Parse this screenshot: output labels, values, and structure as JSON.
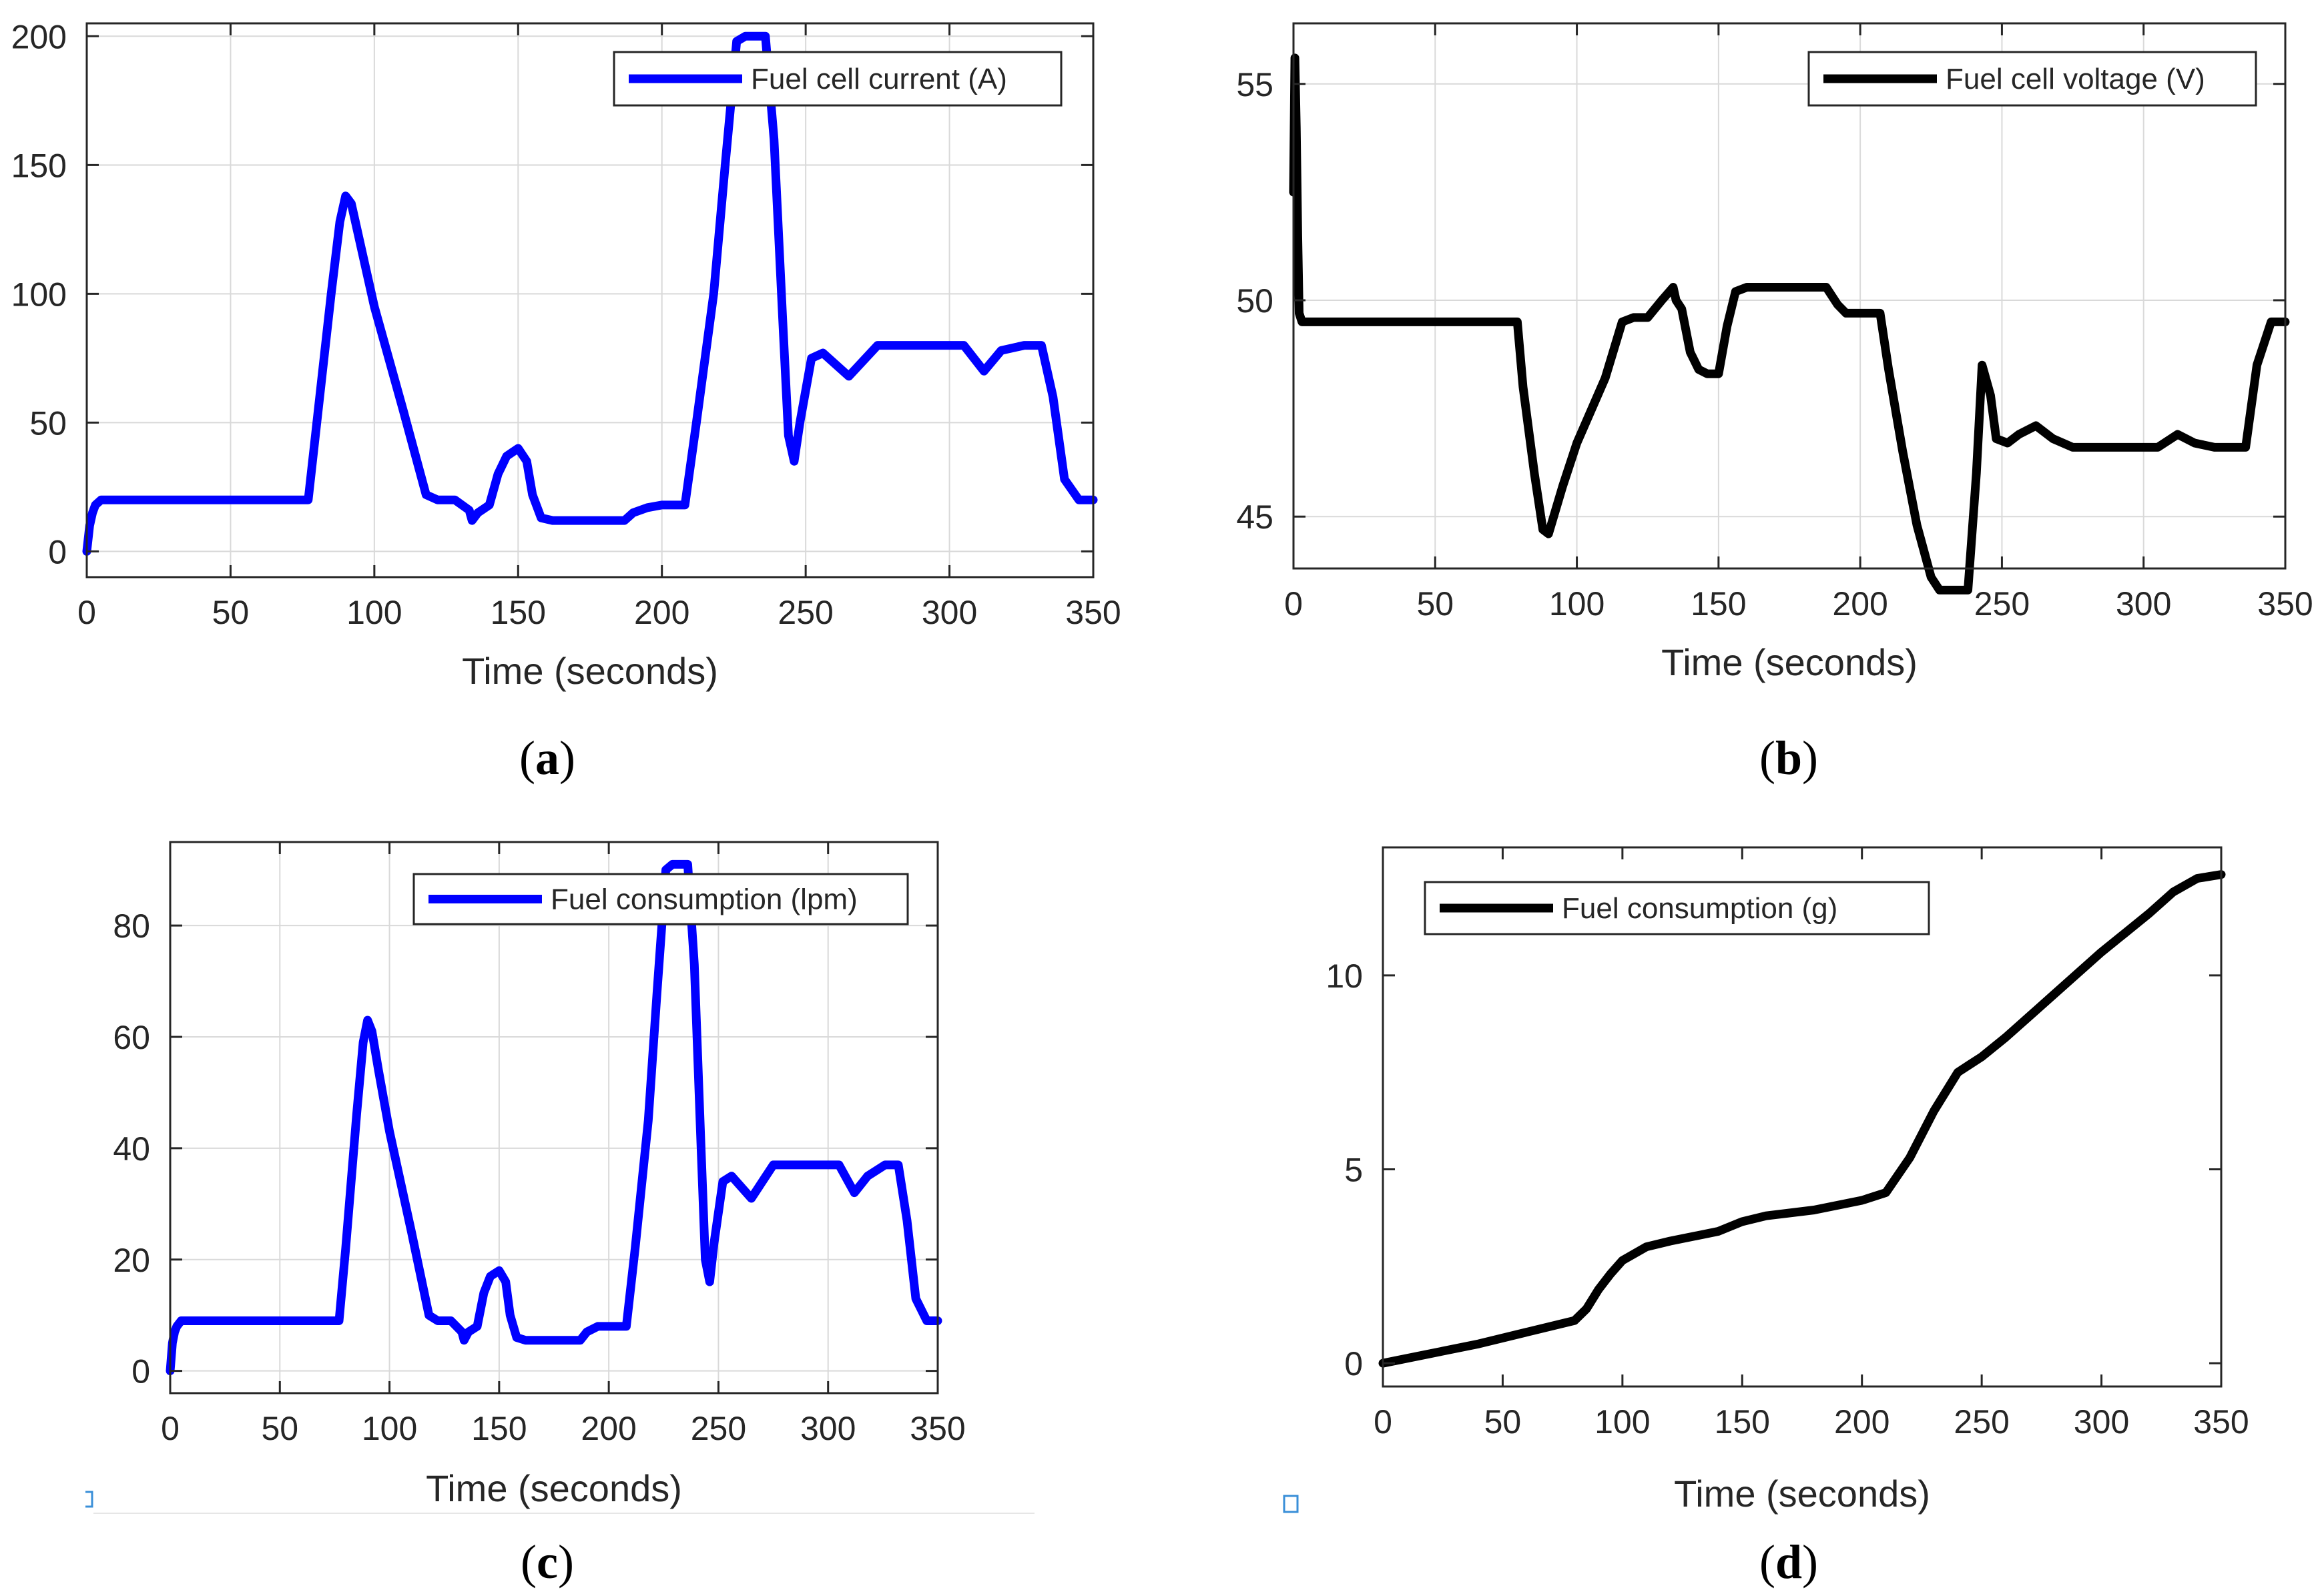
{
  "chart_data": [
    {
      "type": "line",
      "panel_label": "a",
      "title": "",
      "xlabel": "Time (seconds)",
      "ylabel": "",
      "xlim": [
        0,
        350
      ],
      "ylim": [
        -10,
        205
      ],
      "xticks": [
        0,
        50,
        100,
        150,
        200,
        250,
        300,
        350
      ],
      "yticks": [
        0,
        50,
        100,
        150,
        200
      ],
      "grid": true,
      "legend_position": "top-right",
      "series": [
        {
          "name": "Fuel cell current (A)",
          "color": "#0000ff",
          "x": [
            0,
            1,
            2,
            3,
            5,
            10,
            20,
            40,
            60,
            77,
            80,
            85,
            88,
            90,
            92,
            95,
            100,
            110,
            118,
            122,
            128,
            133,
            134,
            136,
            140,
            143,
            146,
            150,
            153,
            155,
            158,
            162,
            170,
            180,
            187,
            190,
            195,
            200,
            208,
            212,
            218,
            222,
            226,
            229,
            232,
            236,
            239,
            242,
            244,
            246,
            248,
            252,
            256,
            265,
            275,
            295,
            305,
            312,
            318,
            326,
            332,
            336,
            340,
            345,
            350
          ],
          "y": [
            0,
            10,
            15,
            18,
            20,
            20,
            20,
            20,
            20,
            20,
            50,
            100,
            128,
            138,
            135,
            120,
            95,
            55,
            22,
            20,
            20,
            16,
            12,
            15,
            18,
            30,
            37,
            40,
            35,
            22,
            13,
            12,
            12,
            12,
            12,
            15,
            17,
            18,
            18,
            50,
            100,
            150,
            198,
            200,
            200,
            200,
            160,
            90,
            45,
            35,
            50,
            75,
            77,
            68,
            80,
            80,
            80,
            70,
            78,
            80,
            80,
            60,
            28,
            20,
            20
          ]
        }
      ]
    },
    {
      "type": "line",
      "panel_label": "b",
      "title": "",
      "xlabel": "Time (seconds)",
      "ylabel": "",
      "xlim": [
        0,
        350
      ],
      "ylim": [
        43.8,
        56.4
      ],
      "xticks": [
        0,
        50,
        100,
        150,
        200,
        250,
        300,
        350
      ],
      "yticks": [
        45,
        50,
        55
      ],
      "grid": true,
      "legend_position": "top-right",
      "series": [
        {
          "name": "Fuel cell voltage (V)",
          "color": "#000000",
          "x": [
            0,
            0.5,
            1,
            1.5,
            2,
            3,
            5,
            10,
            30,
            60,
            79,
            81,
            85,
            88,
            90,
            95,
            100,
            110,
            116,
            120,
            125,
            130,
            134,
            135,
            137,
            140,
            143,
            146,
            150,
            153,
            156,
            160,
            170,
            180,
            188,
            192,
            195,
            200,
            207,
            210,
            215,
            220,
            225,
            228,
            230,
            235,
            238,
            241,
            243,
            246,
            248,
            252,
            256,
            262,
            268,
            275,
            290,
            300,
            305,
            312,
            318,
            325,
            332,
            336,
            340,
            345,
            350
          ],
          "y": [
            52.5,
            55.6,
            54,
            51.5,
            49.7,
            49.5,
            49.5,
            49.5,
            49.5,
            49.5,
            49.5,
            48,
            46,
            44.7,
            44.6,
            45.7,
            46.7,
            48.2,
            49.5,
            49.6,
            49.6,
            50,
            50.3,
            50,
            49.8,
            48.8,
            48.4,
            48.3,
            48.3,
            49.4,
            50.2,
            50.3,
            50.3,
            50.3,
            50.3,
            49.9,
            49.7,
            49.7,
            49.7,
            48.4,
            46.5,
            44.8,
            43.6,
            43.3,
            43.3,
            43.3,
            43.3,
            46,
            48.5,
            47.8,
            46.8,
            46.7,
            46.9,
            47.1,
            46.8,
            46.6,
            46.6,
            46.6,
            46.6,
            46.9,
            46.7,
            46.6,
            46.6,
            46.6,
            48.5,
            49.5,
            49.5
          ]
        }
      ]
    },
    {
      "type": "line",
      "panel_label": "c",
      "title": "",
      "xlabel": "Time (seconds)",
      "ylabel": "",
      "xlim": [
        0,
        350
      ],
      "ylim": [
        -4,
        95
      ],
      "xticks": [
        0,
        50,
        100,
        150,
        200,
        250,
        300,
        350
      ],
      "yticks": [
        0,
        20,
        40,
        60,
        80
      ],
      "grid": true,
      "legend_position": "top-right",
      "series": [
        {
          "name": "Fuel consumption (lpm)",
          "color": "#0000ff",
          "x": [
            0,
            1,
            2,
            3,
            5,
            10,
            20,
            40,
            60,
            77,
            80,
            85,
            88,
            90,
            92,
            95,
            100,
            110,
            118,
            122,
            128,
            133,
            134,
            136,
            140,
            143,
            146,
            150,
            153,
            155,
            158,
            162,
            170,
            180,
            187,
            190,
            195,
            200,
            208,
            212,
            218,
            222,
            226,
            229,
            232,
            236,
            239,
            242,
            244,
            246,
            248,
            252,
            256,
            265,
            275,
            295,
            305,
            312,
            318,
            326,
            332,
            336,
            340,
            345,
            350
          ],
          "y": [
            0,
            5,
            7,
            8,
            9,
            9,
            9,
            9,
            9,
            9,
            22,
            46,
            59,
            63,
            61,
            54,
            43,
            25,
            10,
            9,
            9,
            7,
            5.5,
            7,
            8,
            14,
            17,
            18,
            16,
            10,
            6,
            5.5,
            5.5,
            5.5,
            5.5,
            7,
            8,
            8,
            8,
            22,
            45,
            68,
            90,
            91,
            91,
            91,
            73,
            41,
            20,
            16,
            23,
            34,
            35,
            31,
            37,
            37,
            37,
            32,
            35,
            37,
            37,
            27,
            13,
            9,
            9
          ]
        }
      ]
    },
    {
      "type": "line",
      "panel_label": "d",
      "title": "",
      "xlabel": "Time (seconds)",
      "ylabel": "",
      "xlim": [
        0,
        350
      ],
      "ylim": [
        -0.6,
        13.3
      ],
      "xticks": [
        0,
        50,
        100,
        150,
        200,
        250,
        300,
        350
      ],
      "yticks": [
        0,
        5,
        10
      ],
      "grid": false,
      "legend_position": "top-left",
      "series": [
        {
          "name": "Fuel consumption (g)",
          "color": "#000000",
          "x": [
            0,
            20,
            40,
            60,
            80,
            85,
            90,
            95,
            100,
            110,
            120,
            140,
            150,
            160,
            180,
            200,
            210,
            220,
            230,
            240,
            245,
            250,
            260,
            270,
            280,
            290,
            300,
            310,
            320,
            330,
            340,
            345,
            350
          ],
          "y": [
            0,
            0.25,
            0.5,
            0.8,
            1.1,
            1.4,
            1.9,
            2.3,
            2.65,
            3.0,
            3.15,
            3.4,
            3.65,
            3.8,
            3.95,
            4.2,
            4.4,
            5.3,
            6.5,
            7.5,
            7.7,
            7.9,
            8.4,
            8.95,
            9.5,
            10.05,
            10.6,
            11.1,
            11.6,
            12.15,
            12.5,
            12.55,
            12.6
          ]
        }
      ]
    }
  ]
}
